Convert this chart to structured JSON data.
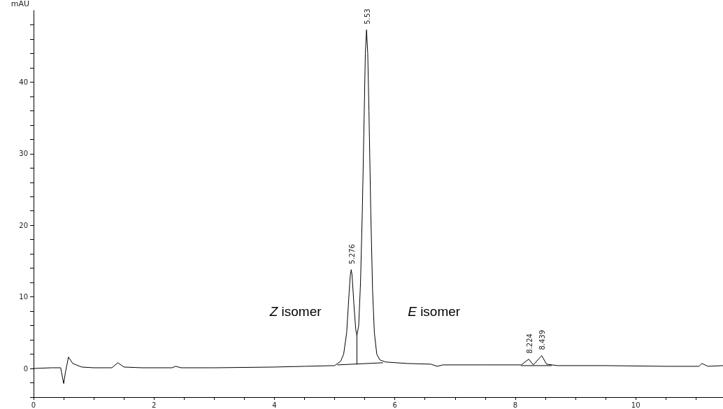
{
  "chart_data": {
    "type": "line",
    "ylabel": "mAU",
    "xlim": [
      0,
      11.45
    ],
    "ylim": [
      -4,
      50
    ],
    "xticks": [
      0,
      {
        "value": 0.5,
        "label": null
      },
      2,
      {
        "value": 1,
        "label": null
      },
      {
        "value": 1.5,
        "label": null
      },
      {
        "value": 2.5,
        "label": null
      },
      {
        "value": 3,
        "label": null
      },
      {
        "value": 3.5,
        "label": null
      },
      4,
      {
        "value": 4.5,
        "label": null
      },
      {
        "value": 5,
        "label": null
      },
      {
        "value": 5.5,
        "label": null
      },
      6,
      {
        "value": 6.5,
        "label": null
      },
      {
        "value": 7,
        "label": null
      },
      {
        "value": 7.5,
        "label": null
      },
      8,
      {
        "value": 8.5,
        "label": null
      },
      {
        "value": 9,
        "label": null
      },
      {
        "value": 9.5,
        "label": null
      },
      10,
      {
        "value": 10.5,
        "label": null
      },
      {
        "value": 11,
        "label": null
      }
    ],
    "yticks": [
      {
        "value": -4,
        "label": null
      },
      {
        "value": -2,
        "label": null
      },
      0,
      {
        "value": 2,
        "label": null
      },
      {
        "value": 4,
        "label": null
      },
      {
        "value": 6,
        "label": null
      },
      {
        "value": 8,
        "label": null
      },
      10,
      {
        "value": 12,
        "label": null
      },
      {
        "value": 14,
        "label": null
      },
      {
        "value": 16,
        "label": null
      },
      {
        "value": 18,
        "label": null
      },
      20,
      {
        "value": 22,
        "label": null
      },
      {
        "value": 24,
        "label": null
      },
      {
        "value": 26,
        "label": null
      },
      {
        "value": 28,
        "label": null
      },
      30,
      {
        "value": 32,
        "label": null
      },
      {
        "value": 34,
        "label": null
      },
      {
        "value": 36,
        "label": null
      },
      {
        "value": 38,
        "label": null
      },
      40,
      {
        "value": 42,
        "label": null
      },
      {
        "value": 44,
        "label": null
      },
      {
        "value": 46,
        "label": null
      },
      {
        "value": 48,
        "label": null
      }
    ],
    "grid": false,
    "marker": "none",
    "line_style": "solid",
    "series": [
      {
        "color": "#000000",
        "x": [
          0,
          0.3,
          0.45,
          0.5,
          0.53,
          0.58,
          0.65,
          0.8,
          1.0,
          1.3,
          1.4,
          1.5,
          1.8,
          2.3,
          2.36,
          2.45,
          3.0,
          4.0,
          4.5,
          5.0,
          5.1,
          5.15,
          5.2,
          5.24,
          5.26,
          5.276,
          5.29,
          5.32,
          5.35,
          5.37,
          5.4,
          5.43,
          5.46,
          5.49,
          5.51,
          5.53,
          5.55,
          5.57,
          5.6,
          5.63,
          5.66,
          5.7,
          5.75,
          5.85,
          6.2,
          6.6,
          6.7,
          6.8,
          7.5,
          8.1,
          8.224,
          8.3,
          8.439,
          8.52,
          8.7,
          9.5,
          10.5,
          11.05,
          11.1,
          11.2,
          11.45
        ],
        "values": [
          0,
          0.1,
          0.1,
          -2.1,
          -0.5,
          1.6,
          0.7,
          0.2,
          0.1,
          0.1,
          0.8,
          0.2,
          0.1,
          0.1,
          0.3,
          0.1,
          0.1,
          0.2,
          0.3,
          0.4,
          1.0,
          2,
          5,
          10.5,
          13,
          13.8,
          13,
          9,
          5.5,
          4.6,
          6,
          12,
          22,
          35,
          44,
          47.3,
          44,
          36,
          22,
          11,
          5,
          2,
          1.2,
          0.9,
          0.7,
          0.6,
          0.3,
          0.5,
          0.5,
          0.5,
          1.3,
          0.5,
          1.8,
          0.6,
          0.4,
          0.4,
          0.3,
          0.3,
          0.7,
          0.3,
          0.4
        ]
      },
      {
        "color": "#000000",
        "x": [
          5.05,
          5.8
        ],
        "values": [
          0.5,
          0.8
        ]
      },
      {
        "color": "#000000",
        "x": [
          5.37,
          5.37
        ],
        "values": [
          0.6,
          4.6
        ]
      },
      {
        "color": "#000000",
        "x": [
          8.1,
          8.6
        ],
        "values": [
          0.4,
          0.4
        ]
      }
    ],
    "annotations": [
      {
        "text": "5.276",
        "x": 5.276,
        "y": 13.8
      },
      {
        "text": "5.53",
        "x": 5.53,
        "y": 47.3
      },
      {
        "text": "8.224",
        "x": 8.224,
        "y": 1.3
      },
      {
        "text": "8.439",
        "x": 8.439,
        "y": 1.8
      },
      "Z isomer",
      "E isomer"
    ]
  }
}
